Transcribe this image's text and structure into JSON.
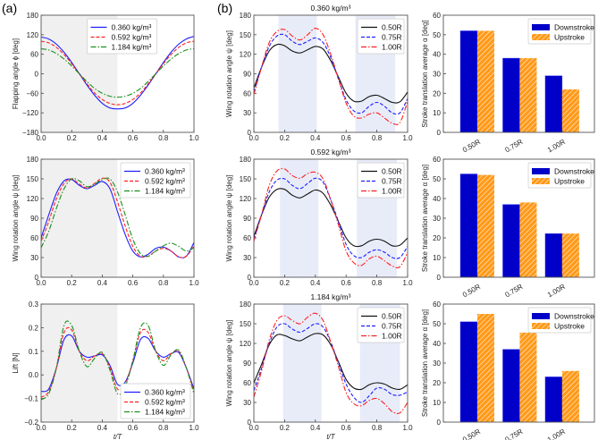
{
  "panel_labels": [
    "(a)",
    "(b)"
  ],
  "colors": {
    "blue": "#1f1fff",
    "red": "#ff2020",
    "green": "#1a8f1a",
    "black": "#111111",
    "bar_blue": "#0000c8",
    "bar_orange": "#ff9a1a",
    "shade_gray": "#f0f0f0",
    "shade_blue": "#e8ecf9"
  },
  "chart_data": [
    {
      "type": "line",
      "id": "a1",
      "title": "",
      "xlabel": "",
      "ylabel": "Flapping angle ϕ [deg]",
      "xlim": [
        0,
        1
      ],
      "ylim": [
        -180,
        180
      ],
      "yticks": [
        -180,
        -120,
        -60,
        0,
        60,
        120,
        180
      ],
      "ytick_labels": [
        "−180",
        "−120",
        "−60",
        "0",
        "60",
        "120",
        "180"
      ],
      "xticks": [
        0,
        0.2,
        0.4,
        0.6,
        0.8,
        1.0
      ],
      "xtick_labels": [
        "0.0",
        "0.2",
        "0.4",
        "0.6",
        "0.8",
        "1.0"
      ],
      "shaded": [
        [
          0,
          0.5
        ]
      ],
      "shade_color": "gray",
      "legend": "upper center",
      "x": [
        0,
        0.05,
        0.1,
        0.15,
        0.2,
        0.25,
        0.3,
        0.35,
        0.4,
        0.45,
        0.5,
        0.55,
        0.6,
        0.65,
        0.7,
        0.75,
        0.8,
        0.85,
        0.9,
        0.95,
        1
      ],
      "series": [
        {
          "name": "0.360 kg/m³",
          "color": "blue",
          "style": "solid",
          "values": [
            113,
            107,
            91,
            66,
            35,
            0,
            -35,
            -66,
            -91,
            -105,
            -108,
            -105,
            -91,
            -66,
            -35,
            0,
            35,
            66,
            91,
            107,
            115
          ]
        },
        {
          "name": "0.592 kg/m³",
          "color": "red",
          "style": "dash",
          "values": [
            100,
            95,
            81,
            59,
            31,
            0,
            -31,
            -59,
            -79,
            -91,
            -95,
            -91,
            -79,
            -59,
            -31,
            0,
            31,
            59,
            81,
            95,
            100
          ]
        },
        {
          "name": "1.184 kg/m³",
          "color": "green",
          "style": "dashdot",
          "values": [
            77,
            73,
            62,
            45,
            24,
            0,
            -24,
            -45,
            -60,
            -69,
            -72,
            -69,
            -60,
            -45,
            -24,
            0,
            24,
            45,
            62,
            73,
            77
          ]
        }
      ]
    },
    {
      "type": "line",
      "id": "a2",
      "title": "",
      "xlabel": "",
      "ylabel": "Wing rotation angle ψ [deg]",
      "xlim": [
        0,
        1
      ],
      "ylim": [
        0,
        180
      ],
      "yticks": [
        0,
        30,
        60,
        90,
        120,
        150,
        180
      ],
      "ytick_labels": [
        "0",
        "30",
        "60",
        "90",
        "120",
        "150",
        "180"
      ],
      "xticks": [
        0,
        0.2,
        0.4,
        0.6,
        0.8,
        1.0
      ],
      "xtick_labels": [
        "0.0",
        "0.2",
        "0.4",
        "0.6",
        "0.8",
        "1.0"
      ],
      "shaded": [
        [
          0,
          0.5
        ]
      ],
      "shade_color": "gray",
      "legend": "upper right",
      "x": [
        0,
        0.05,
        0.1,
        0.15,
        0.2,
        0.25,
        0.3,
        0.35,
        0.4,
        0.45,
        0.5,
        0.55,
        0.6,
        0.65,
        0.7,
        0.75,
        0.8,
        0.85,
        0.9,
        0.95,
        1
      ],
      "series": [
        {
          "name": "0.360 kg/m³",
          "color": "blue",
          "style": "solid",
          "values": [
            60,
            95,
            128,
            147,
            149,
            140,
            135,
            140,
            146,
            135,
            100,
            65,
            40,
            31,
            35,
            44,
            46,
            40,
            31,
            32,
            53
          ]
        },
        {
          "name": "0.592 kg/m³",
          "color": "red",
          "style": "dash",
          "values": [
            55,
            85,
            120,
            143,
            150,
            142,
            136,
            143,
            151,
            145,
            115,
            78,
            47,
            32,
            32,
            40,
            44,
            40,
            31,
            32,
            48
          ]
        },
        {
          "name": "1.184 kg/m³",
          "color": "green",
          "style": "dashdot",
          "values": [
            45,
            70,
            105,
            135,
            150,
            147,
            138,
            142,
            149,
            150,
            130,
            95,
            58,
            36,
            32,
            40,
            48,
            52,
            47,
            40,
            45
          ]
        }
      ]
    },
    {
      "type": "line",
      "id": "a3",
      "title": "",
      "xlabel": "t/T",
      "ylabel": "Lift [N]",
      "xlim": [
        0,
        1
      ],
      "ylim": [
        -0.2,
        0.3
      ],
      "yticks": [
        -0.2,
        -0.1,
        0,
        0.1,
        0.2,
        0.3
      ],
      "ytick_labels": [
        "−0.2",
        "−0.1",
        "0.0",
        "0.1",
        "0.2",
        "0.3"
      ],
      "xticks": [
        0,
        0.2,
        0.4,
        0.6,
        0.8,
        1.0
      ],
      "xtick_labels": [
        "0.0",
        "0.2",
        "0.4",
        "0.6",
        "0.8",
        "1.0"
      ],
      "shaded": [
        [
          0,
          0.5
        ]
      ],
      "shade_color": "gray",
      "legend": "lower right",
      "x": [
        0,
        0.05,
        0.1,
        0.15,
        0.2,
        0.25,
        0.3,
        0.35,
        0.4,
        0.45,
        0.5,
        0.55,
        0.6,
        0.65,
        0.7,
        0.75,
        0.8,
        0.85,
        0.9,
        0.95,
        1
      ],
      "series": [
        {
          "name": "0.360 kg/m³",
          "color": "blue",
          "style": "solid",
          "values": [
            -0.07,
            -0.06,
            0.03,
            0.15,
            0.165,
            0.1,
            0.075,
            0.08,
            0.085,
            0.04,
            -0.04,
            -0.03,
            0.05,
            0.15,
            0.155,
            0.1,
            0.075,
            0.09,
            0.095,
            0.03,
            -0.06
          ]
        },
        {
          "name": "0.592 kg/m³",
          "color": "red",
          "style": "dash",
          "values": [
            -0.095,
            -0.07,
            0.03,
            0.18,
            0.19,
            0.1,
            0.06,
            0.08,
            0.09,
            0.03,
            -0.06,
            -0.04,
            0.06,
            0.18,
            0.18,
            0.1,
            0.06,
            0.09,
            0.1,
            0.03,
            -0.07
          ]
        },
        {
          "name": "1.184 kg/m³",
          "color": "green",
          "style": "dashdot",
          "values": [
            -0.105,
            -0.08,
            0.03,
            0.21,
            0.21,
            0.1,
            0.035,
            0.07,
            0.095,
            0.02,
            -0.08,
            -0.05,
            0.06,
            0.2,
            0.21,
            0.1,
            0.04,
            0.085,
            0.105,
            0.03,
            -0.08
          ]
        }
      ]
    },
    {
      "type": "line",
      "id": "b1",
      "title": "0.360 kg/m³",
      "xlabel": "",
      "ylabel": "Wing rotation angle ψ [deg]",
      "xlim": [
        0,
        1
      ],
      "ylim": [
        0,
        180
      ],
      "yticks": [
        0,
        30,
        60,
        90,
        120,
        150,
        180
      ],
      "ytick_labels": [
        "0",
        "30",
        "60",
        "90",
        "120",
        "150",
        "180"
      ],
      "xticks": [
        0,
        0.2,
        0.4,
        0.6,
        0.8,
        1.0
      ],
      "xtick_labels": [
        "0.0",
        "0.2",
        "0.4",
        "0.6",
        "0.8",
        "1.0"
      ],
      "shaded": [
        [
          0.16,
          0.41
        ],
        [
          0.66,
          0.92
        ]
      ],
      "shade_color": "blue",
      "legend": "upper right",
      "x": [
        0,
        0.05,
        0.1,
        0.15,
        0.2,
        0.25,
        0.3,
        0.35,
        0.4,
        0.45,
        0.5,
        0.55,
        0.6,
        0.65,
        0.7,
        0.75,
        0.8,
        0.85,
        0.9,
        0.95,
        1
      ],
      "series": [
        {
          "name": "0.50R",
          "color": "black",
          "style": "solid",
          "values": [
            68,
            100,
            125,
            135,
            133,
            125,
            122,
            127,
            132,
            128,
            110,
            85,
            60,
            48,
            48,
            55,
            57,
            52,
            46,
            47,
            62
          ]
        },
        {
          "name": "0.75R",
          "color": "blue",
          "style": "dash",
          "values": [
            62,
            100,
            132,
            148,
            150,
            140,
            135,
            140,
            145,
            138,
            115,
            82,
            50,
            33,
            30,
            40,
            46,
            40,
            30,
            30,
            52
          ]
        },
        {
          "name": "1.00R",
          "color": "red",
          "style": "dashdot",
          "values": [
            58,
            100,
            138,
            155,
            158,
            148,
            142,
            150,
            160,
            150,
            120,
            82,
            45,
            25,
            22,
            28,
            30,
            22,
            14,
            15,
            48
          ]
        }
      ]
    },
    {
      "type": "line",
      "id": "b2",
      "title": "0.592 kg/m³",
      "xlabel": "",
      "ylabel": "Wing rotation angle ψ [deg]",
      "xlim": [
        0,
        1
      ],
      "ylim": [
        0,
        180
      ],
      "yticks": [
        0,
        30,
        60,
        90,
        120,
        150,
        180
      ],
      "ytick_labels": [
        "0",
        "30",
        "60",
        "90",
        "120",
        "150",
        "180"
      ],
      "xticks": [
        0,
        0.2,
        0.4,
        0.6,
        0.8,
        1.0
      ],
      "xtick_labels": [
        "0.0",
        "0.2",
        "0.4",
        "0.6",
        "0.8",
        "1.0"
      ],
      "shaded": [
        [
          0.17,
          0.42
        ],
        [
          0.67,
          0.93
        ]
      ],
      "shade_color": "blue",
      "legend": "upper right",
      "x": [
        0,
        0.05,
        0.1,
        0.15,
        0.2,
        0.25,
        0.3,
        0.35,
        0.4,
        0.45,
        0.5,
        0.55,
        0.6,
        0.65,
        0.7,
        0.75,
        0.8,
        0.85,
        0.9,
        0.95,
        1
      ],
      "series": [
        {
          "name": "0.50R",
          "color": "black",
          "style": "solid",
          "values": [
            62,
            95,
            122,
            134,
            134,
            125,
            121,
            127,
            133,
            128,
            110,
            85,
            60,
            48,
            48,
            55,
            58,
            55,
            48,
            49,
            60
          ]
        },
        {
          "name": "0.75R",
          "color": "blue",
          "style": "dash",
          "values": [
            58,
            95,
            130,
            148,
            150,
            140,
            135,
            143,
            151,
            145,
            118,
            85,
            50,
            33,
            30,
            38,
            42,
            38,
            30,
            30,
            47
          ]
        },
        {
          "name": "1.00R",
          "color": "red",
          "style": "dashdot",
          "values": [
            55,
            95,
            140,
            162,
            165,
            155,
            151,
            158,
            160,
            150,
            118,
            80,
            40,
            22,
            18,
            28,
            32,
            25,
            17,
            16,
            38
          ]
        }
      ]
    },
    {
      "type": "line",
      "id": "b3",
      "title": "1.184 kg/m³",
      "xlabel": "t/T",
      "ylabel": "Wing rotation angle ψ [deg]",
      "xlim": [
        0,
        1
      ],
      "ylim": [
        0,
        180
      ],
      "yticks": [
        0,
        30,
        60,
        90,
        120,
        150,
        180
      ],
      "ytick_labels": [
        "0",
        "30",
        "60",
        "90",
        "120",
        "150",
        "180"
      ],
      "xticks": [
        0,
        0.2,
        0.4,
        0.6,
        0.8,
        1.0
      ],
      "xtick_labels": [
        "0.0",
        "0.2",
        "0.4",
        "0.6",
        "0.8",
        "1.0"
      ],
      "shaded": [
        [
          0.19,
          0.44
        ],
        [
          0.69,
          0.95
        ]
      ],
      "shade_color": "blue",
      "legend": "upper right",
      "x": [
        0,
        0.05,
        0.1,
        0.15,
        0.2,
        0.25,
        0.3,
        0.35,
        0.4,
        0.45,
        0.5,
        0.55,
        0.6,
        0.65,
        0.7,
        0.75,
        0.8,
        0.85,
        0.9,
        0.95,
        1
      ],
      "series": [
        {
          "name": "0.50R",
          "color": "black",
          "style": "solid",
          "values": [
            60,
            88,
            118,
            133,
            132,
            127,
            124,
            130,
            135,
            133,
            118,
            92,
            65,
            52,
            50,
            57,
            60,
            58,
            52,
            50,
            57
          ]
        },
        {
          "name": "0.75R",
          "color": "blue",
          "style": "dash",
          "values": [
            48,
            82,
            120,
            145,
            150,
            142,
            137,
            143,
            150,
            145,
            122,
            90,
            58,
            38,
            30,
            40,
            52,
            50,
            42,
            41,
            46
          ]
        },
        {
          "name": "1.00R",
          "color": "red",
          "style": "dashdot",
          "values": [
            38,
            78,
            125,
            155,
            162,
            155,
            150,
            160,
            166,
            155,
            122,
            85,
            45,
            28,
            25,
            33,
            36,
            28,
            16,
            14,
            30
          ]
        }
      ]
    },
    {
      "type": "bar",
      "id": "c1",
      "title": "",
      "xlabel": "",
      "ylabel": "Stroke translation average α [deg]",
      "categories": [
        "0.50R",
        "0.75R",
        "1.00R"
      ],
      "ylim": [
        0,
        60
      ],
      "yticks": [
        0,
        10,
        20,
        30,
        40,
        50,
        60
      ],
      "ytick_labels": [
        "0",
        "10",
        "20",
        "30",
        "40",
        "50",
        "60"
      ],
      "legend": "upper right",
      "series": [
        {
          "name": "Downstroke",
          "color": "bar_blue",
          "hatch": false,
          "values": [
            52,
            38,
            29
          ]
        },
        {
          "name": "Upstroke",
          "color": "bar_orange",
          "hatch": true,
          "values": [
            52,
            38,
            22
          ]
        }
      ]
    },
    {
      "type": "bar",
      "id": "c2",
      "title": "",
      "xlabel": "",
      "ylabel": "Stroke translation average α [deg]",
      "categories": [
        "0.50R",
        "0.75R",
        "1.00R"
      ],
      "ylim": [
        0,
        60
      ],
      "yticks": [
        0,
        10,
        20,
        30,
        40,
        50,
        60
      ],
      "ytick_labels": [
        "0",
        "10",
        "20",
        "30",
        "40",
        "50",
        "60"
      ],
      "legend": "upper right",
      "series": [
        {
          "name": "Downstroke",
          "color": "bar_blue",
          "hatch": false,
          "values": [
            52.5,
            37,
            22.2
          ]
        },
        {
          "name": "Upstroke",
          "color": "bar_orange",
          "hatch": true,
          "values": [
            52,
            38,
            22.2
          ]
        }
      ]
    },
    {
      "type": "bar",
      "id": "c3",
      "title": "",
      "xlabel": "",
      "ylabel": "Stroke translation average α [deg]",
      "categories": [
        "0.50R",
        "0.75R",
        "1.00R"
      ],
      "ylim": [
        0,
        60
      ],
      "yticks": [
        0,
        10,
        20,
        30,
        40,
        50,
        60
      ],
      "ytick_labels": [
        "0",
        "10",
        "20",
        "30",
        "40",
        "50",
        "60"
      ],
      "legend": "upper right",
      "series": [
        {
          "name": "Downstroke",
          "color": "bar_blue",
          "hatch": false,
          "values": [
            51,
            37,
            23
          ]
        },
        {
          "name": "Upstroke",
          "color": "bar_orange",
          "hatch": true,
          "values": [
            55,
            45.5,
            26
          ]
        }
      ]
    }
  ]
}
